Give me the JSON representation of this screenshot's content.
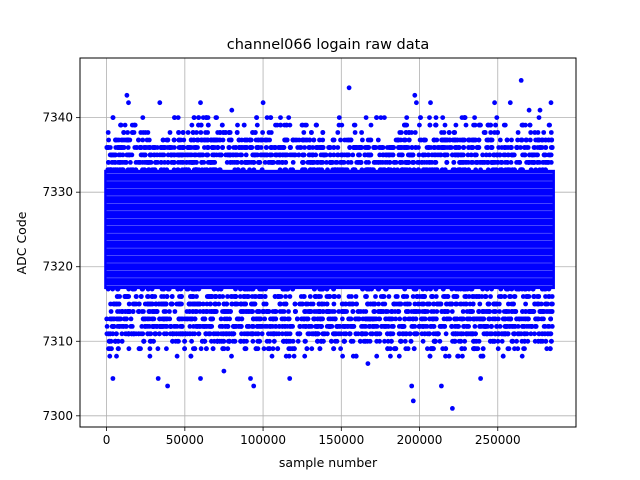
{
  "chart_data": {
    "type": "scatter",
    "title": "channel066 logain raw data",
    "xlabel": "sample number",
    "ylabel": "ADC Code",
    "xlim": [
      -17000,
      300000
    ],
    "ylim": [
      7298.5,
      7348
    ],
    "x_ticks": [
      0,
      50000,
      100000,
      150000,
      200000,
      250000
    ],
    "x_tick_labels": [
      "0",
      "50000",
      "100000",
      "150000",
      "200000",
      "250000"
    ],
    "y_ticks": [
      7300,
      7310,
      7320,
      7330,
      7340
    ],
    "y_tick_labels": [
      "7300",
      "7310",
      "7320",
      "7330",
      "7340"
    ],
    "grid": true,
    "marker_color": "#0000ff",
    "series": [
      {
        "x_range": [
          0,
          285000
        ],
        "y_core_range": [
          7313,
          7335
        ],
        "outliers": [
          {
            "x": 4000,
            "y": 7305
          },
          {
            "x": 13000,
            "y": 7343
          },
          {
            "x": 14000,
            "y": 7342
          },
          {
            "x": 33000,
            "y": 7305
          },
          {
            "x": 34000,
            "y": 7342
          },
          {
            "x": 39000,
            "y": 7304
          },
          {
            "x": 60000,
            "y": 7305
          },
          {
            "x": 60000,
            "y": 7342
          },
          {
            "x": 75000,
            "y": 7306
          },
          {
            "x": 80000,
            "y": 7341
          },
          {
            "x": 92000,
            "y": 7305
          },
          {
            "x": 94000,
            "y": 7304
          },
          {
            "x": 100000,
            "y": 7342
          },
          {
            "x": 117000,
            "y": 7305
          },
          {
            "x": 155000,
            "y": 7344
          },
          {
            "x": 167000,
            "y": 7307
          },
          {
            "x": 195000,
            "y": 7304
          },
          {
            "x": 196000,
            "y": 7302
          },
          {
            "x": 197000,
            "y": 7343
          },
          {
            "x": 198000,
            "y": 7342
          },
          {
            "x": 207000,
            "y": 7342
          },
          {
            "x": 214000,
            "y": 7304
          },
          {
            "x": 221000,
            "y": 7301
          },
          {
            "x": 239000,
            "y": 7305
          },
          {
            "x": 248000,
            "y": 7342
          },
          {
            "x": 258000,
            "y": 7342
          },
          {
            "x": 265000,
            "y": 7345
          },
          {
            "x": 270000,
            "y": 7341
          },
          {
            "x": 277000,
            "y": 7341
          },
          {
            "x": 284000,
            "y": 7342
          }
        ]
      }
    ]
  }
}
